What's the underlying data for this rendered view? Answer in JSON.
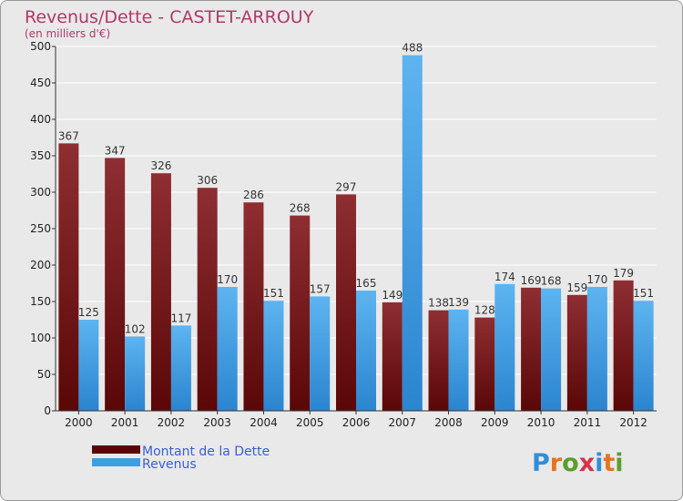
{
  "chart_data": {
    "type": "bar",
    "title": "Revenus/Dette - CASTET-ARROUY",
    "subtitle": "(en milliers d'€)",
    "categories": [
      "2000",
      "2001",
      "2002",
      "2003",
      "2004",
      "2005",
      "2006",
      "2007",
      "2008",
      "2009",
      "2010",
      "2011",
      "2012"
    ],
    "series": [
      {
        "name": "Montant de la Dette",
        "color": "#7a1c1f",
        "values": [
          367,
          347,
          326,
          306,
          286,
          268,
          297,
          149,
          138,
          128,
          169,
          159,
          179
        ]
      },
      {
        "name": "Revenus",
        "color": "#3d9fe3",
        "values": [
          125,
          102,
          117,
          170,
          151,
          157,
          165,
          488,
          139,
          174,
          168,
          170,
          151
        ]
      }
    ],
    "ylim": [
      0,
      500
    ],
    "yticks": [
      0,
      50,
      100,
      150,
      200,
      250,
      300,
      350,
      400,
      450,
      500
    ],
    "grid": true,
    "legend_position": "bottom-left"
  },
  "logo": {
    "letters": [
      "P",
      "r",
      "o",
      "x",
      "i",
      "t",
      "i"
    ],
    "colors": [
      "#2f8fd8",
      "#e8731e",
      "#5a9e2f",
      "#d8304a",
      "#2f8fd8",
      "#e8731e",
      "#5a9e2f"
    ]
  }
}
